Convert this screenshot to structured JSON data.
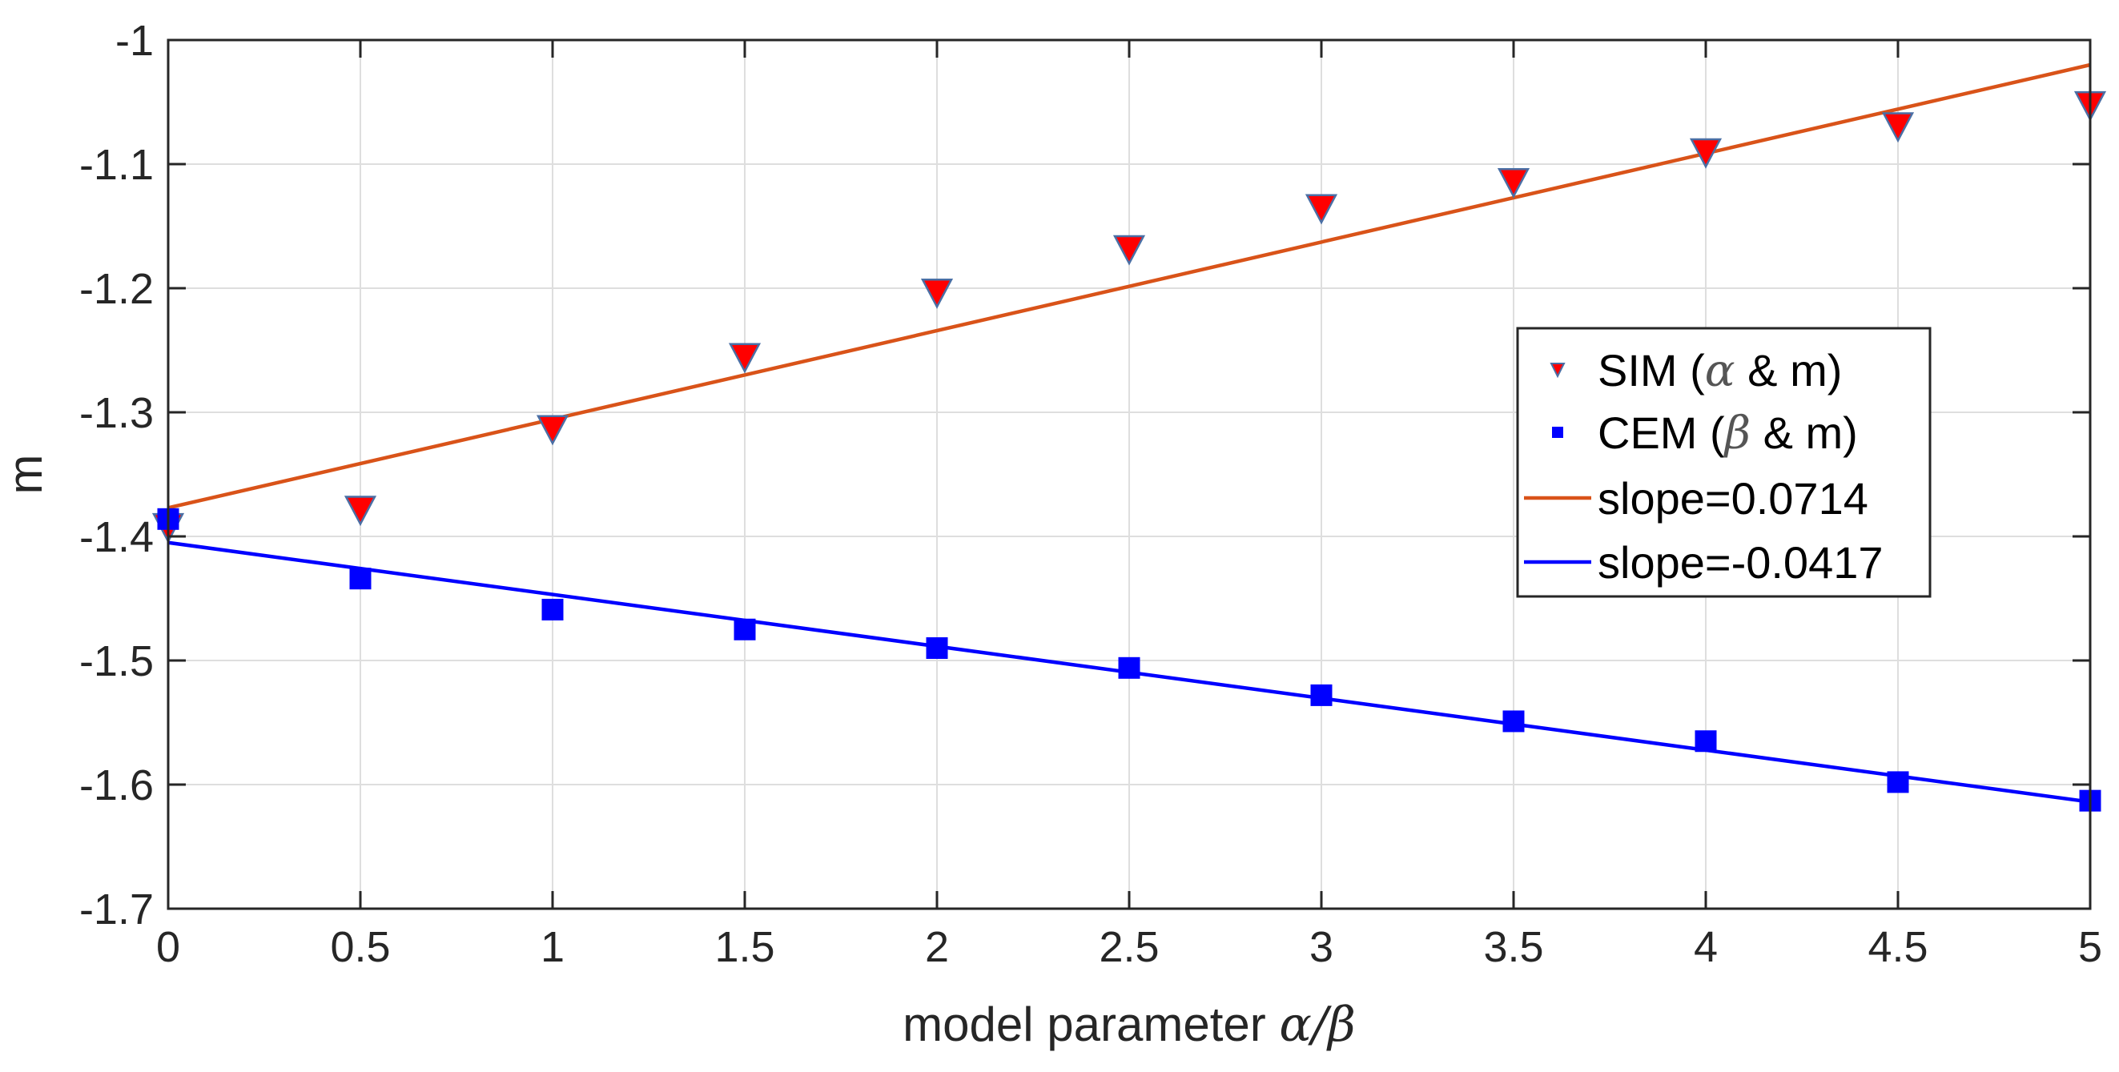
{
  "chart_data": {
    "type": "scatter",
    "title": "",
    "xlabel": {
      "prefix": "model parameter ",
      "math": "α/β"
    },
    "ylabel": "m",
    "xlim": [
      0,
      5
    ],
    "ylim": [
      -1.7,
      -1.0
    ],
    "x_ticks": [
      0,
      0.5,
      1,
      1.5,
      2,
      2.5,
      3,
      3.5,
      4,
      4.5,
      5
    ],
    "x_tick_labels": [
      "0",
      "0.5",
      "1",
      "1.5",
      "2",
      "2.5",
      "3",
      "3.5",
      "4",
      "4.5",
      "5"
    ],
    "y_ticks": [
      -1.0,
      -1.1,
      -1.2,
      -1.3,
      -1.4,
      -1.5,
      -1.6,
      -1.7
    ],
    "y_tick_labels": [
      "-1",
      "-1.1",
      "-1.2",
      "-1.3",
      "-1.4",
      "-1.5",
      "-1.6",
      "-1.7"
    ],
    "grid": true,
    "legend_position": "right",
    "series": [
      {
        "name": "SIM",
        "legend_before": "SIM (",
        "legend_greek": "α",
        "legend_after": " & m)",
        "kind": "scatter",
        "marker": "triangle-down",
        "color": "#ff0000",
        "edge_color": "#4a6fa5",
        "x": [
          0,
          0.5,
          1,
          1.5,
          2,
          2.5,
          3,
          3.5,
          4,
          4.5,
          5
        ],
        "y": [
          -1.393,
          -1.379,
          -1.314,
          -1.256,
          -1.204,
          -1.169,
          -1.136,
          -1.115,
          -1.091,
          -1.07,
          -1.053
        ]
      },
      {
        "name": "CEM",
        "legend_before": "CEM (",
        "legend_greek": "β",
        "legend_after": " & m)",
        "kind": "scatter",
        "marker": "square",
        "color": "#0000ff",
        "x": [
          0,
          0.5,
          1,
          1.5,
          2,
          2.5,
          3,
          3.5,
          4,
          4.5,
          5
        ],
        "y": [
          -1.386,
          -1.434,
          -1.459,
          -1.475,
          -1.49,
          -1.506,
          -1.528,
          -1.549,
          -1.565,
          -1.598,
          -1.613
        ]
      },
      {
        "name": "slope=0.0714",
        "legend_before": "slope=0.0714",
        "kind": "line",
        "color": "#d95319",
        "slope": 0.0714,
        "x": [
          0,
          5
        ],
        "y": [
          -1.377,
          -1.02
        ]
      },
      {
        "name": "slope=-0.0417",
        "legend_before": "slope=-0.0417",
        "kind": "line",
        "color": "#0000ff",
        "slope": -0.0417,
        "x": [
          0,
          5
        ],
        "y": [
          -1.405,
          -1.614
        ]
      }
    ]
  }
}
